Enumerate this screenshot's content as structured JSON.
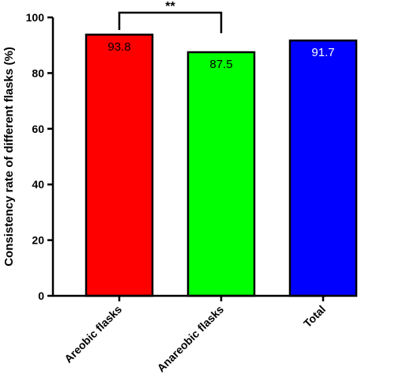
{
  "chart_data": {
    "type": "bar",
    "categories": [
      "Areobic flasks",
      "Anareobic flasks",
      "Total"
    ],
    "values": [
      93.8,
      87.5,
      91.7
    ],
    "data_labels": [
      "93.8",
      "87.5",
      "91.7"
    ],
    "colors": [
      "#ff0000",
      "#00ff00",
      "#0000ff"
    ],
    "data_label_colors": [
      "#000000",
      "#000000",
      "#ffffff"
    ],
    "ylabel": "Consistency rate of different flasks (%)",
    "ylim": [
      0,
      100
    ],
    "yticks": [
      0,
      20,
      40,
      60,
      80,
      100
    ],
    "grid": false,
    "significance": {
      "from": 0,
      "to": 1,
      "label": "**"
    }
  }
}
